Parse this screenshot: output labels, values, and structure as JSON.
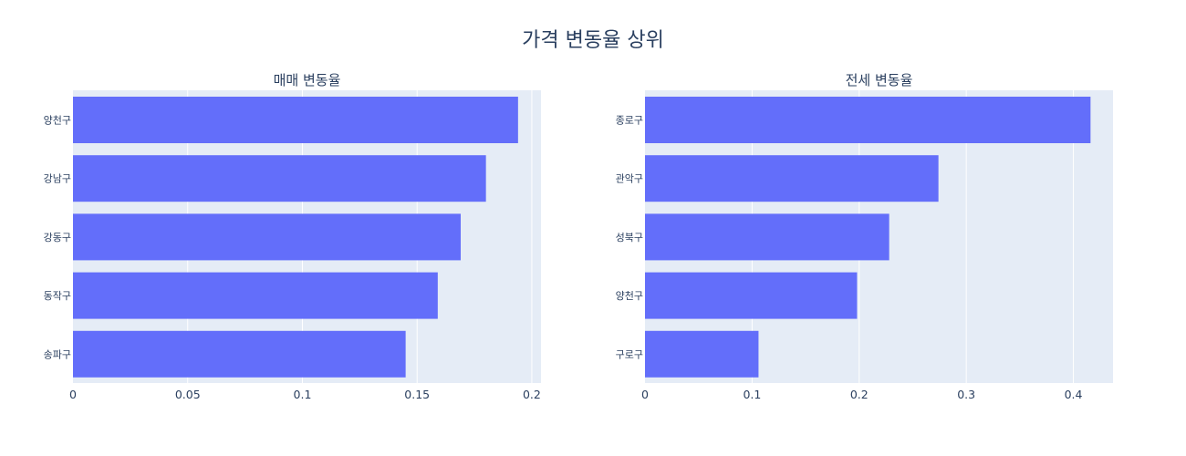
{
  "title": "가격 변동율 상위",
  "colors": {
    "bar": "#636efa",
    "plot_bg": "#e5ecf6",
    "grid": "#ffffff",
    "text": "#2a3f5f"
  },
  "chart_data": [
    {
      "type": "bar",
      "orientation": "horizontal",
      "title": "매매 변동율",
      "categories": [
        "양천구",
        "강남구",
        "강동구",
        "동작구",
        "송파구"
      ],
      "values": [
        0.194,
        0.18,
        0.169,
        0.159,
        0.145
      ],
      "xlim": [
        0,
        0.204
      ],
      "xticks": [
        0,
        0.05,
        0.1,
        0.15,
        0.2
      ],
      "xtick_labels": [
        "0",
        "0.05",
        "0.1",
        "0.15",
        "0.2"
      ],
      "grid": true,
      "xlabel": "",
      "ylabel": ""
    },
    {
      "type": "bar",
      "orientation": "horizontal",
      "title": "전세 변동율",
      "categories": [
        "종로구",
        "관악구",
        "성북구",
        "양천구",
        "구로구"
      ],
      "values": [
        0.416,
        0.274,
        0.228,
        0.198,
        0.106
      ],
      "xlim": [
        0,
        0.437
      ],
      "xticks": [
        0,
        0.1,
        0.2,
        0.3,
        0.4
      ],
      "xtick_labels": [
        "0",
        "0.1",
        "0.2",
        "0.3",
        "0.4"
      ],
      "grid": true,
      "xlabel": "",
      "ylabel": ""
    }
  ]
}
